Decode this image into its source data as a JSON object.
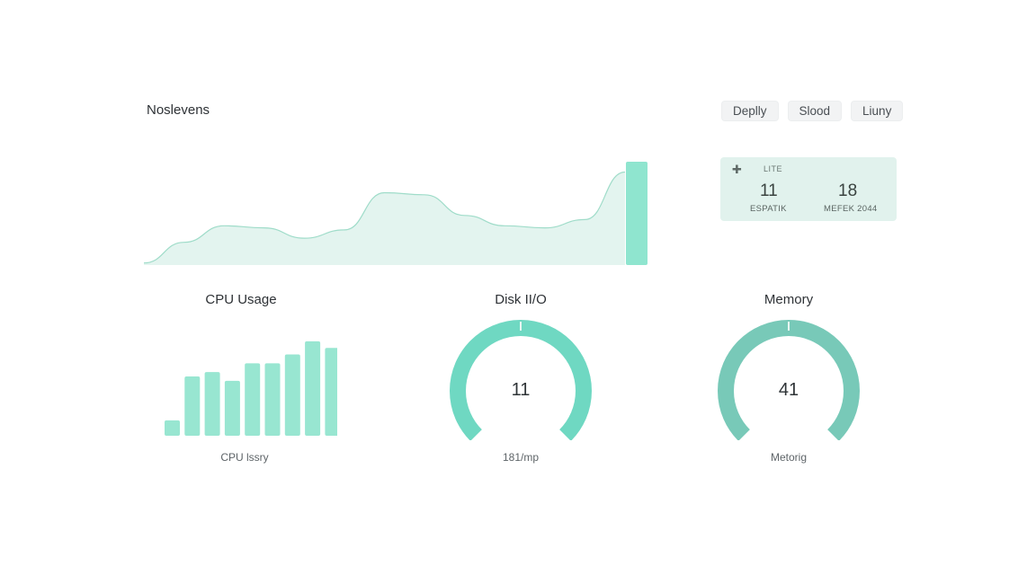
{
  "header": {
    "title": "Noslevens",
    "buttons": [
      "Deplly",
      "Slood",
      "Liuny"
    ]
  },
  "stat_card": {
    "icon": "plus-icon",
    "top_label": "LITE",
    "left": {
      "value": "11",
      "caption": "ESPATIK"
    },
    "right": {
      "value": "18",
      "caption": "MEFEK 2044"
    }
  },
  "chart_data": [
    {
      "type": "area",
      "title": "",
      "x": [
        0,
        1,
        2,
        3,
        4,
        5,
        6,
        7,
        8,
        9,
        10,
        11,
        12
      ],
      "values": [
        2,
        22,
        38,
        36,
        26,
        34,
        70,
        68,
        48,
        38,
        36,
        44,
        90
      ],
      "ylim": [
        0,
        100
      ],
      "highlight_bar_value": 100,
      "grid": false,
      "color": "#8fe5cf"
    },
    {
      "type": "bar",
      "title": "CPU Usage",
      "values": [
        14,
        54,
        58,
        50,
        66,
        66,
        74,
        86,
        80
      ],
      "ylim": [
        0,
        90
      ],
      "xlabel": "CPU lssry",
      "color": "#98e6d1"
    }
  ],
  "gauges": [
    {
      "title": "Disk II/O",
      "value": "11",
      "caption": "181/mp",
      "fill_fraction": 0.75,
      "color": "#6fd8c2"
    },
    {
      "title": "Memory",
      "value": "41",
      "caption": "Metorig",
      "fill_fraction": 0.75,
      "color": "#78c9b8"
    }
  ],
  "colors": {
    "accent": "#8fe5cf",
    "area_fill": "#e3f4ef",
    "area_line": "#9fdcc9",
    "card_bg": "#e1f2ed"
  }
}
